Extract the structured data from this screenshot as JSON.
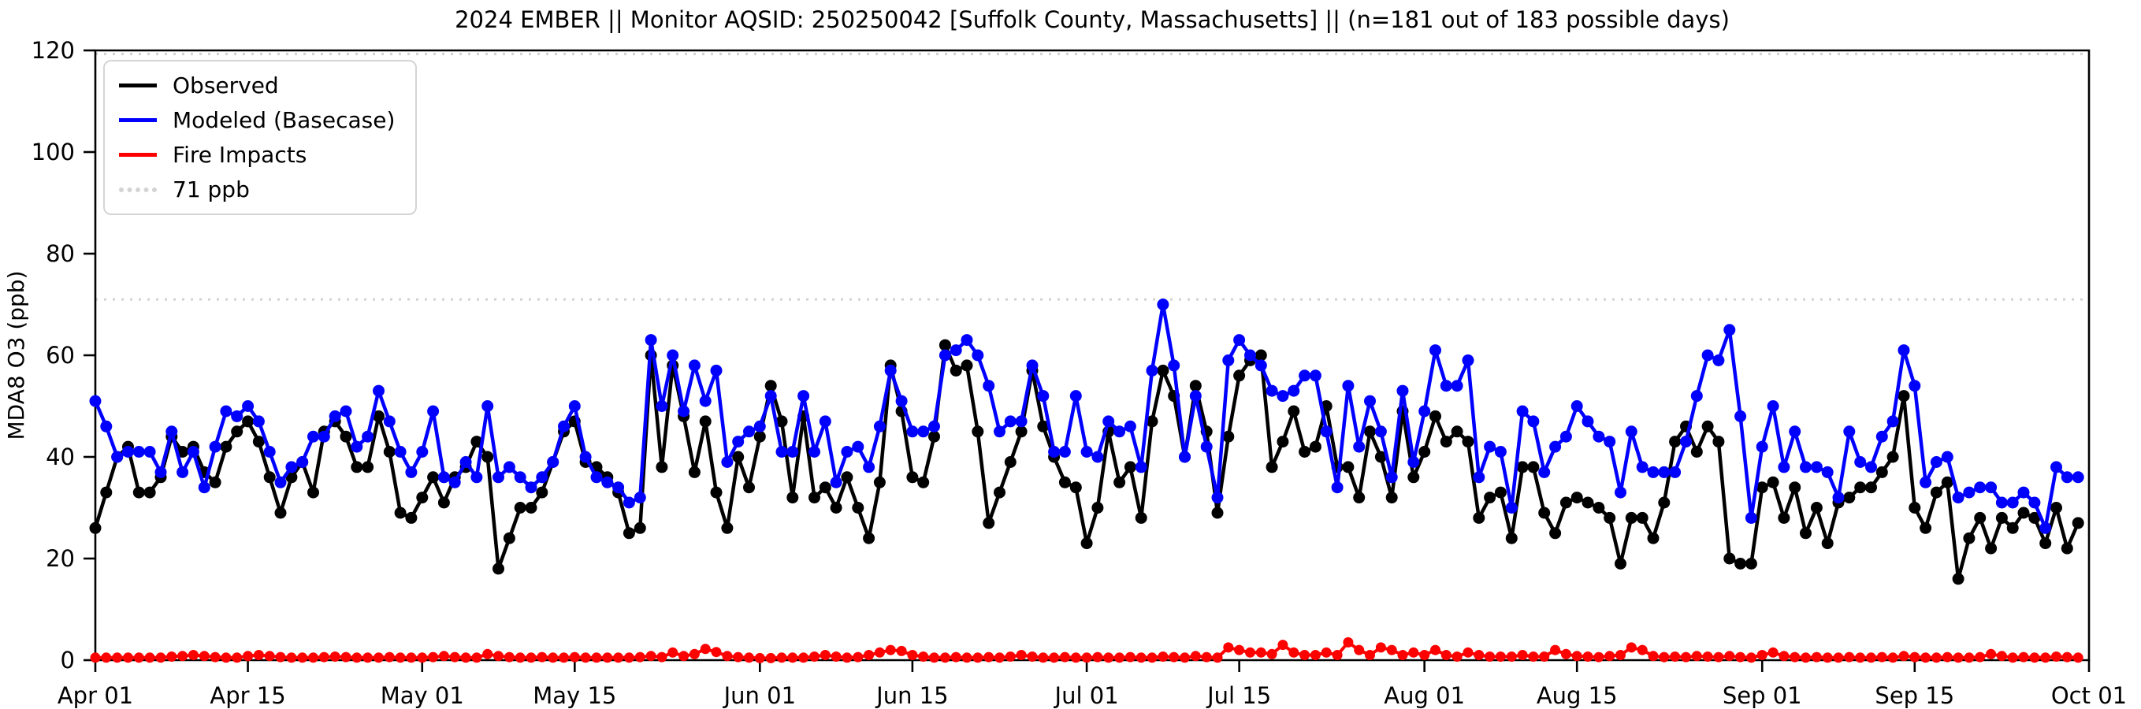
{
  "chart_data": {
    "type": "line",
    "title": "2024 EMBER || Monitor AQSID: 250250042 [Suffolk County, Massachusetts] || (n=181 out of 183 possible days)",
    "ylabel": "MDA8 O3 (ppb)",
    "ylim": [
      0,
      120
    ],
    "y_ticks": [
      0,
      20,
      40,
      60,
      80,
      100,
      120
    ],
    "n_days": 183,
    "x_start": "Apr 01",
    "x_end": "Oct 01",
    "grid": "off",
    "legend_position": "upper left",
    "x_ticks": [
      {
        "day": 0,
        "label": "Apr 01"
      },
      {
        "day": 14,
        "label": "Apr 15"
      },
      {
        "day": 30,
        "label": "May 01"
      },
      {
        "day": 44,
        "label": "May 15"
      },
      {
        "day": 61,
        "label": "Jun 01"
      },
      {
        "day": 75,
        "label": "Jun 15"
      },
      {
        "day": 91,
        "label": "Jul 01"
      },
      {
        "day": 105,
        "label": "Jul 15"
      },
      {
        "day": 122,
        "label": "Aug 01"
      },
      {
        "day": 136,
        "label": "Aug 15"
      },
      {
        "day": 153,
        "label": "Sep 01"
      },
      {
        "day": 167,
        "label": "Sep 15"
      },
      {
        "day": 183,
        "label": "Oct 01"
      }
    ],
    "thresholds": [
      {
        "value": 71,
        "label": "71 ppb",
        "color": "#d3d3d3"
      },
      {
        "value": 119.3,
        "label": "",
        "color": "#d3d3d3"
      }
    ],
    "legend": [
      {
        "name": "Observed",
        "color": "#000000",
        "style": "solid"
      },
      {
        "name": "Modeled (Basecase)",
        "color": "#0000ff",
        "style": "solid"
      },
      {
        "name": "Fire Impacts",
        "color": "#ff0000",
        "style": "solid"
      },
      {
        "name": "71 ppb",
        "color": "#d3d3d3",
        "style": "dotted"
      }
    ],
    "series": [
      {
        "name": "Observed",
        "color": "#000000",
        "marker_r": 7.5,
        "line_w": 4.5,
        "values": [
          26,
          33,
          40,
          42,
          33,
          33,
          36,
          44,
          41,
          42,
          37,
          35,
          42,
          45,
          47,
          43,
          36,
          29,
          36,
          39,
          33,
          45,
          47,
          44,
          38,
          38,
          48,
          41,
          29,
          28,
          32,
          36,
          31,
          36,
          38,
          43,
          40,
          18,
          24,
          30,
          30,
          33,
          39,
          45,
          47,
          39,
          38,
          36,
          33,
          25,
          26,
          60,
          38,
          58,
          48,
          37,
          47,
          33,
          26,
          40,
          34,
          44,
          54,
          47,
          32,
          48,
          32,
          34,
          30,
          36,
          30,
          24,
          35,
          58,
          49,
          36,
          35,
          44,
          62,
          57,
          58,
          45,
          27,
          33,
          39,
          45,
          57,
          46,
          40,
          35,
          34,
          23,
          30,
          45,
          35,
          38,
          28,
          47,
          57,
          52,
          40,
          54,
          45,
          29,
          44,
          56,
          59,
          60,
          38,
          43,
          49,
          41,
          42,
          50,
          38,
          38,
          32,
          45,
          40,
          32,
          49,
          36,
          41,
          48,
          43,
          45,
          43,
          28,
          32,
          33,
          24,
          38,
          38,
          29,
          25,
          31,
          32,
          31,
          30,
          28,
          19,
          28,
          28,
          24,
          31,
          43,
          46,
          41,
          46,
          43,
          20,
          19,
          19,
          34,
          35,
          28,
          34,
          25,
          30,
          23,
          31,
          32,
          34,
          34,
          37,
          40,
          52,
          30,
          26,
          33,
          35,
          16,
          24,
          28,
          22,
          28,
          26,
          29,
          28,
          23,
          30,
          22,
          27
        ]
      },
      {
        "name": "Modeled (Basecase)",
        "color": "#0000ff",
        "marker_r": 7.5,
        "line_w": 4.5,
        "values": [
          51,
          46,
          40,
          41,
          41,
          41,
          37,
          45,
          37,
          41,
          34,
          42,
          49,
          48,
          50,
          47,
          41,
          35,
          38,
          39,
          44,
          44,
          48,
          49,
          42,
          44,
          53,
          47,
          41,
          37,
          41,
          49,
          36,
          35,
          39,
          36,
          50,
          36,
          38,
          36,
          34,
          36,
          39,
          46,
          50,
          40,
          36,
          35,
          34,
          31,
          32,
          63,
          50,
          60,
          49,
          58,
          51,
          57,
          39,
          43,
          45,
          46,
          52,
          41,
          41,
          52,
          41,
          47,
          35,
          41,
          42,
          38,
          46,
          57,
          51,
          45,
          45,
          46,
          60,
          61,
          63,
          60,
          54,
          45,
          47,
          47,
          58,
          52,
          41,
          41,
          52,
          41,
          40,
          47,
          45,
          46,
          38,
          57,
          70,
          58,
          40,
          52,
          42,
          32,
          59,
          63,
          60,
          58,
          53,
          52,
          53,
          56,
          56,
          45,
          34,
          54,
          42,
          51,
          45,
          36,
          53,
          39,
          49,
          61,
          54,
          54,
          59,
          36,
          42,
          41,
          30,
          49,
          47,
          37,
          42,
          44,
          50,
          47,
          44,
          43,
          33,
          45,
          38,
          37,
          37,
          37,
          43,
          52,
          60,
          59,
          65,
          48,
          28,
          42,
          50,
          38,
          45,
          38,
          38,
          37,
          32,
          45,
          39,
          38,
          44,
          47,
          61,
          54,
          35,
          39,
          40,
          32,
          33,
          34,
          34,
          31,
          31,
          33,
          31,
          26,
          38,
          36,
          36
        ]
      },
      {
        "name": "Fire Impacts",
        "color": "#ff0000",
        "marker_r": 6.5,
        "line_w": 4,
        "values": [
          0.5,
          0.5,
          0.5,
          0.5,
          0.5,
          0.5,
          0.5,
          0.7,
          0.8,
          1.0,
          0.8,
          0.6,
          0.5,
          0.5,
          0.8,
          1.0,
          0.8,
          0.6,
          0.5,
          0.5,
          0.5,
          0.6,
          0.7,
          0.6,
          0.5,
          0.5,
          0.5,
          0.6,
          0.5,
          0.5,
          0.5,
          0.6,
          0.8,
          0.6,
          0.5,
          0.5,
          1.2,
          0.8,
          0.6,
          0.5,
          0.5,
          0.6,
          0.5,
          0.5,
          0.6,
          0.5,
          0.5,
          0.5,
          0.5,
          0.5,
          0.6,
          0.8,
          0.6,
          1.5,
          0.8,
          1.2,
          2.2,
          1.6,
          0.8,
          0.6,
          0.5,
          0.4,
          0.4,
          0.5,
          0.5,
          0.5,
          0.7,
          1.0,
          0.7,
          0.5,
          0.6,
          1.0,
          1.5,
          2.0,
          1.8,
          1.0,
          0.7,
          0.5,
          0.5,
          0.6,
          0.5,
          0.5,
          0.6,
          0.5,
          0.7,
          1.0,
          0.7,
          0.5,
          0.5,
          0.6,
          0.5,
          0.5,
          0.6,
          0.5,
          0.5,
          0.6,
          0.5,
          0.5,
          0.7,
          0.6,
          0.5,
          0.8,
          0.6,
          0.5,
          2.5,
          2.0,
          1.5,
          1.5,
          1.2,
          3.0,
          1.5,
          1.0,
          1.0,
          1.5,
          1.0,
          3.5,
          2.0,
          1.0,
          2.5,
          2.0,
          1.0,
          1.5,
          1.0,
          2.0,
          1.0,
          0.7,
          1.5,
          1.0,
          0.7,
          0.7,
          0.7,
          1.0,
          0.7,
          0.7,
          2.0,
          1.2,
          0.8,
          0.7,
          0.6,
          0.8,
          1.0,
          2.5,
          2.0,
          0.8,
          0.6,
          0.7,
          0.6,
          0.8,
          0.7,
          0.6,
          0.8,
          0.6,
          0.5,
          1.0,
          1.5,
          0.8,
          0.6,
          0.5,
          0.6,
          0.5,
          0.5,
          0.6,
          0.5,
          0.5,
          0.6,
          0.5,
          0.8,
          0.6,
          0.5,
          0.5,
          0.6,
          0.5,
          0.5,
          0.6,
          1.2,
          0.8,
          0.5,
          0.6,
          0.5,
          0.5,
          0.7,
          0.6,
          0.5
        ]
      }
    ]
  }
}
